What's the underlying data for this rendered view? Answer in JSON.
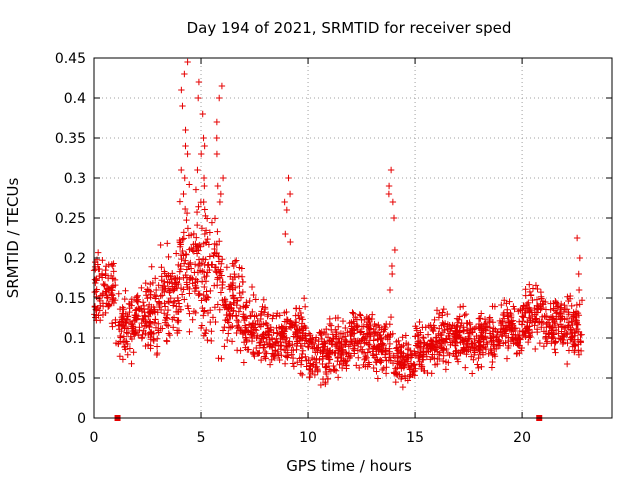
{
  "chart_data": {
    "type": "scatter",
    "title": "Day 194 of 2021, SRMTID for receiver sped",
    "xlabel": "GPS time / hours",
    "ylabel": "SRMTID / TECUs",
    "xlim": [
      0,
      24.2
    ],
    "ylim": [
      0,
      0.45
    ],
    "x_ticks": [
      0,
      5,
      10,
      15,
      20
    ],
    "y_ticks": [
      0,
      0.05,
      0.1,
      0.15,
      0.2,
      0.25,
      0.3,
      0.35,
      0.4,
      0.45
    ],
    "x_tick_labels": [
      "0",
      "5",
      "10",
      "15",
      "20"
    ],
    "y_tick_labels": [
      "0",
      "0.05",
      "0.1",
      "0.15",
      "0.2",
      "0.25",
      "0.3",
      "0.35",
      "0.4",
      "0.45"
    ],
    "grid": true,
    "marker": "+",
    "marker_color": "#e60000",
    "segments": [
      {
        "t0": 0.0,
        "t1": 1.0,
        "mean": 0.16,
        "spread": 0.06
      },
      {
        "t0": 1.0,
        "t1": 2.0,
        "mean": 0.12,
        "spread": 0.06
      },
      {
        "t0": 2.0,
        "t1": 3.0,
        "mean": 0.13,
        "spread": 0.07
      },
      {
        "t0": 3.0,
        "t1": 4.0,
        "mean": 0.15,
        "spread": 0.08
      },
      {
        "t0": 4.0,
        "t1": 5.0,
        "mean": 0.19,
        "spread": 0.12
      },
      {
        "t0": 5.0,
        "t1": 6.0,
        "mean": 0.18,
        "spread": 0.12
      },
      {
        "t0": 6.0,
        "t1": 7.0,
        "mean": 0.14,
        "spread": 0.08
      },
      {
        "t0": 7.0,
        "t1": 8.0,
        "mean": 0.11,
        "spread": 0.06
      },
      {
        "t0": 8.0,
        "t1": 9.0,
        "mean": 0.1,
        "spread": 0.05
      },
      {
        "t0": 9.0,
        "t1": 10.0,
        "mean": 0.1,
        "spread": 0.06
      },
      {
        "t0": 10.0,
        "t1": 11.0,
        "mean": 0.08,
        "spread": 0.05
      },
      {
        "t0": 11.0,
        "t1": 12.0,
        "mean": 0.09,
        "spread": 0.05
      },
      {
        "t0": 12.0,
        "t1": 13.0,
        "mean": 0.1,
        "spread": 0.05
      },
      {
        "t0": 13.0,
        "t1": 14.0,
        "mean": 0.09,
        "spread": 0.05
      },
      {
        "t0": 14.0,
        "t1": 15.0,
        "mean": 0.07,
        "spread": 0.04
      },
      {
        "t0": 15.0,
        "t1": 16.0,
        "mean": 0.09,
        "spread": 0.05
      },
      {
        "t0": 16.0,
        "t1": 17.0,
        "mean": 0.1,
        "spread": 0.05
      },
      {
        "t0": 17.0,
        "t1": 18.0,
        "mean": 0.1,
        "spread": 0.05
      },
      {
        "t0": 18.0,
        "t1": 19.0,
        "mean": 0.1,
        "spread": 0.05
      },
      {
        "t0": 19.0,
        "t1": 20.0,
        "mean": 0.11,
        "spread": 0.05
      },
      {
        "t0": 20.0,
        "t1": 21.0,
        "mean": 0.13,
        "spread": 0.05
      },
      {
        "t0": 21.0,
        "t1": 22.0,
        "mean": 0.12,
        "spread": 0.05
      },
      {
        "t0": 22.0,
        "t1": 22.8,
        "mean": 0.11,
        "spread": 0.06
      }
    ],
    "spikes": [
      {
        "x": 4.2,
        "values": [
          0.445,
          0.43,
          0.41,
          0.39,
          0.36,
          0.34,
          0.33,
          0.31,
          0.3,
          0.28
        ]
      },
      {
        "x": 5.0,
        "values": [
          0.42,
          0.4,
          0.38,
          0.35,
          0.34,
          0.33,
          0.31,
          0.3,
          0.29,
          0.27
        ]
      },
      {
        "x": 5.9,
        "values": [
          0.415,
          0.4,
          0.37,
          0.35,
          0.33,
          0.3,
          0.29,
          0.28,
          0.27
        ]
      },
      {
        "x": 9.0,
        "values": [
          0.3,
          0.28,
          0.27,
          0.26,
          0.23,
          0.22
        ]
      },
      {
        "x": 13.9,
        "values": [
          0.31,
          0.29,
          0.28,
          0.27,
          0.25,
          0.21,
          0.19,
          0.18,
          0.16
        ]
      },
      {
        "x": 22.6,
        "values": [
          0.225,
          0.2,
          0.18,
          0.16
        ]
      }
    ],
    "gap_markers": [
      1.1,
      20.8
    ]
  }
}
